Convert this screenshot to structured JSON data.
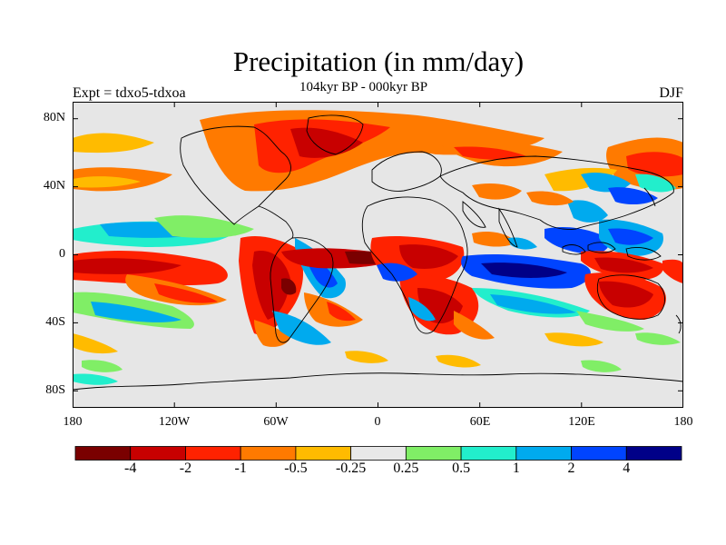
{
  "title": "Precipitation (in mm/day)",
  "subtitle": "104kyr BP - 000kyr BP",
  "left_label": "Expt = tdxo5-tdxoa",
  "right_label": "DJF",
  "lat_ticks": [
    "80N",
    "40N",
    "0",
    "40S",
    "80S"
  ],
  "lon_ticks": [
    "180",
    "120W",
    "60W",
    "0",
    "60E",
    "120E",
    "180"
  ],
  "colorbar": {
    "colors": [
      "#7a0000",
      "#c80000",
      "#ff2200",
      "#ff7a00",
      "#ffbb00",
      "#e8e8e8",
      "#80ee66",
      "#22eecc",
      "#00aaee",
      "#0044ff",
      "#000088"
    ],
    "labels": [
      "-4",
      "-2",
      "-1",
      "-0.5",
      "-0.25",
      "0.25",
      "0.5",
      "1",
      "2",
      "4"
    ]
  }
}
